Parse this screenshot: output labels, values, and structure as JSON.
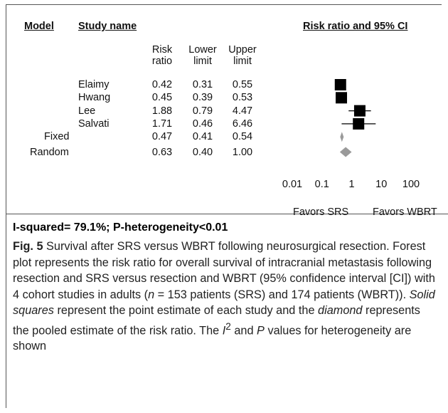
{
  "chart_data": {
    "type": "forest",
    "headers": {
      "model": "Model",
      "study": "Study name",
      "plot": "Risk ratio and 95% CI",
      "rr": "Risk ratio",
      "lower": "Lower limit",
      "upper": "Upper limit"
    },
    "studies": {
      "names": [
        "Elaimy",
        "Hwang",
        "Lee",
        "Salvati"
      ],
      "values": [
        0.42,
        0.45,
        1.88,
        1.71
      ],
      "lower": [
        0.31,
        0.39,
        0.79,
        0.46
      ],
      "upper": [
        0.55,
        0.53,
        4.47,
        6.46
      ],
      "color": "#000000"
    },
    "summaries": {
      "names": [
        "Fixed",
        "Random"
      ],
      "values": [
        0.47,
        0.63
      ],
      "value_labels": [
        "0.47",
        "0.63"
      ],
      "lower": [
        0.41,
        0.4
      ],
      "lower_labels": [
        "0.41",
        "0.40"
      ],
      "upper": [
        0.54,
        1
      ],
      "upper_labels": [
        "0.54",
        "1.00"
      ],
      "color": "#9a9a9a"
    },
    "log_x": true,
    "xlim": [
      0.01,
      100
    ],
    "xticks": [
      0.01,
      0.1,
      1,
      10,
      100
    ],
    "xlabel_left": "Favors SRS",
    "xlabel_right": "Favors WBRT",
    "footer": "I-squared= 79.1%; P-heterogeneity<0.01"
  },
  "caption": {
    "label": "Fig. 5",
    "segments": [
      " Survival after SRS versus WBRT following neurosurgical resection. Forest plot represents the risk ratio for overall survival of intracranial metastasis following resection and SRS versus resection and WBRT (95% confidence interval [CI]) with 4 cohort studies in adults (",
      "n",
      " = 153 patients (SRS) and 174 patients (WBRT)). ",
      "Solid squares",
      " represent the point estimate of each study and the ",
      "diamond",
      " represents the pooled estimate of the risk ratio. The ",
      "I",
      "2",
      " and ",
      "P",
      " values for heterogeneity are shown"
    ]
  }
}
